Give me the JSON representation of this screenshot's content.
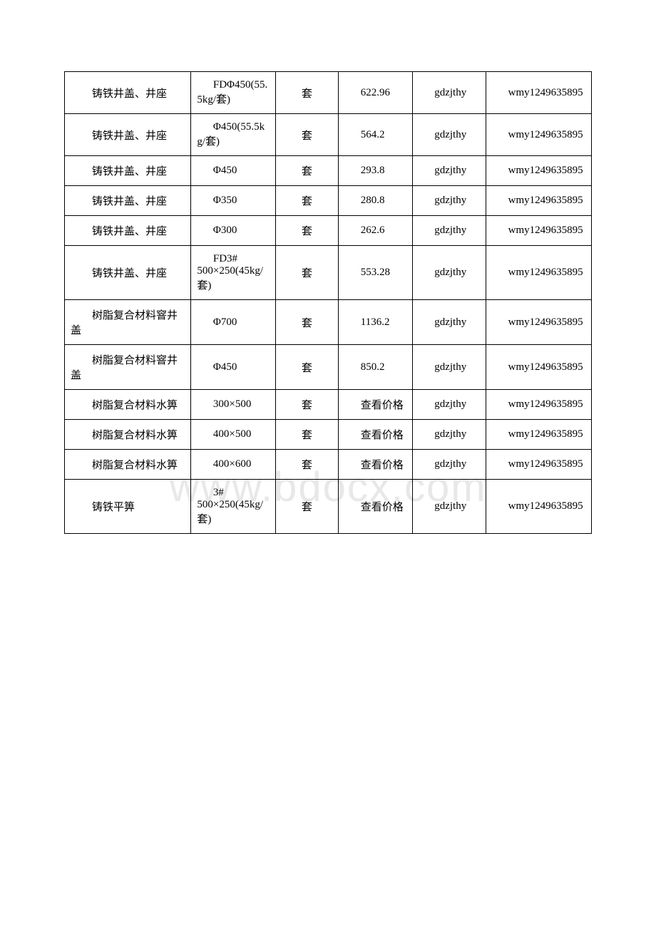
{
  "watermark": "www.bdocx.com",
  "table": {
    "columns_width": [
      "24%",
      "16%",
      "12%",
      "14%",
      "14%",
      "20%"
    ],
    "border_color": "#000000",
    "background_color": "#ffffff",
    "font_size": 15,
    "rows": [
      {
        "name": "铸铁井盖、井座",
        "spec": "FDΦ450(55.5kg/套)",
        "unit": "套",
        "price": "622.96",
        "source": "gdzjthy",
        "code": "wmy1249635895"
      },
      {
        "name": "铸铁井盖、井座",
        "spec": "Φ450(55.5kg/套)",
        "unit": "套",
        "price": "564.2",
        "source": "gdzjthy",
        "code": "wmy1249635895"
      },
      {
        "name": "铸铁井盖、井座",
        "spec": "Φ450",
        "unit": "套",
        "price": "293.8",
        "source": "gdzjthy",
        "code": "wmy1249635895"
      },
      {
        "name": "铸铁井盖、井座",
        "spec": "Φ350",
        "unit": "套",
        "price": "280.8",
        "source": "gdzjthy",
        "code": "wmy1249635895"
      },
      {
        "name": "铸铁井盖、井座",
        "spec": "Φ300",
        "unit": "套",
        "price": "262.6",
        "source": "gdzjthy",
        "code": "wmy1249635895"
      },
      {
        "name": "铸铁井盖、井座",
        "spec": "FD3# 500×250(45kg/套)",
        "unit": "套",
        "price": "553.28",
        "source": "gdzjthy",
        "code": "wmy1249635895"
      },
      {
        "name": "树脂复合材料窨井盖",
        "spec": "Φ700",
        "unit": "套",
        "price": "1136.2",
        "source": "gdzjthy",
        "code": "wmy1249635895"
      },
      {
        "name": "树脂复合材料窨井盖",
        "spec": "Φ450",
        "unit": "套",
        "price": "850.2",
        "source": "gdzjthy",
        "code": "wmy1249635895"
      },
      {
        "name": "树脂复合材料水箅",
        "spec": "300×500",
        "unit": "套",
        "price": "查看价格",
        "source": "gdzjthy",
        "code": "wmy1249635895"
      },
      {
        "name": "树脂复合材料水箅",
        "spec": "400×500",
        "unit": "套",
        "price": "查看价格",
        "source": "gdzjthy",
        "code": "wmy1249635895"
      },
      {
        "name": "树脂复合材料水箅",
        "spec": "400×600",
        "unit": "套",
        "price": "查看价格",
        "source": "gdzjthy",
        "code": "wmy1249635895"
      },
      {
        "name": "铸铁平箅",
        "spec": "3# 500×250(45kg/套)",
        "unit": "套",
        "price": "查看价格",
        "source": "gdzjthy",
        "code": "wmy1249635895"
      }
    ]
  }
}
